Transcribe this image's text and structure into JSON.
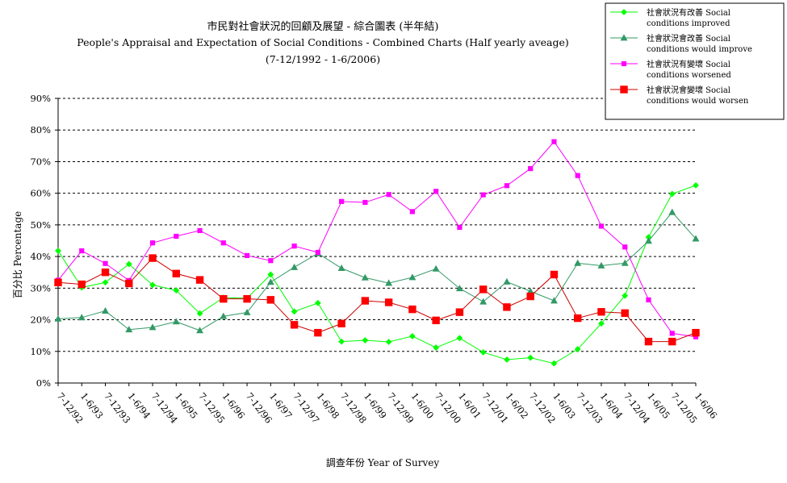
{
  "chart_data": {
    "type": "line",
    "title": "市民對社會狀況的回顧及展望 - 綜合圖表 (半年結)",
    "subtitle": "People's Appraisal and Expectation of Social Conditions - Combined Charts  (Half yearly aveage)",
    "subtitle2": "(7-12/1992 - 1-6/2006)",
    "xlabel": "調查年份 Year of Survey",
    "ylabel": "百分比 Percentage",
    "ylim": [
      0,
      90
    ],
    "yticks": [
      0,
      10,
      20,
      30,
      40,
      50,
      60,
      70,
      80,
      90
    ],
    "ytick_labels": [
      "0%",
      "10%",
      "20%",
      "30%",
      "40%",
      "50%",
      "60%",
      "70%",
      "80%",
      "90%"
    ],
    "grid": "horizontal dashed",
    "legend_position": "top-right",
    "categories": [
      "7-12/92",
      "1-6/93",
      "7-12/93",
      "1-6/94",
      "7-12/94",
      "1-6/95",
      "7-12/95",
      "1-6/96",
      "7-12/96",
      "1-6/97",
      "7-12/97",
      "1-6/98",
      "7-12/98",
      "1-6/99",
      "7-12/99",
      "1-6/00",
      "7-12/00",
      "1-6/01",
      "7-12/01",
      "1-6/02",
      "7-12/02",
      "1-6/03",
      "7-12/03",
      "1-6/04",
      "7-12/04",
      "1-6/05",
      "7-12/05",
      "1-6/06"
    ],
    "series": [
      {
        "name": "社會狀況有改善 Social conditions improved",
        "name_line1": "社會狀況有改善 Social",
        "name_line2": "conditions improved",
        "color": "#00ff00",
        "marker": "diamond",
        "values": [
          41.8,
          30.2,
          31.8,
          37.6,
          31.0,
          29.3,
          22.0,
          27.0,
          26.8,
          34.3,
          22.6,
          25.3,
          13.1,
          13.5,
          13.0,
          14.8,
          11.2,
          14.2,
          9.7,
          7.4,
          8.0,
          6.2,
          10.7,
          18.8,
          27.6,
          46.1,
          59.8,
          62.5
        ]
      },
      {
        "name": "社會狀況會改善 Social conditions would improve",
        "name_line1": "社會狀況會改善 Social",
        "name_line2": "conditions would improve",
        "color": "#339966",
        "marker": "triangle",
        "values": [
          20.3,
          20.7,
          22.8,
          16.9,
          17.6,
          19.4,
          16.6,
          21.1,
          22.3,
          31.9,
          36.6,
          41.0,
          36.3,
          33.3,
          31.6,
          33.4,
          36.1,
          29.9,
          25.7,
          32.0,
          29.0,
          26.0,
          37.9,
          37.1,
          37.9,
          44.9,
          54.0,
          45.6
        ]
      },
      {
        "name": "社會狀況有變壞 Social conditions worsened",
        "name_line1": "社會狀況有變壞 Social",
        "name_line2": "conditions worsened",
        "color": "#ff00ff",
        "marker": "square-small",
        "values": [
          32.5,
          41.8,
          37.8,
          32.4,
          44.3,
          46.4,
          48.2,
          44.3,
          40.3,
          38.7,
          43.3,
          41.3,
          57.4,
          57.1,
          59.6,
          54.2,
          60.6,
          49.2,
          59.5,
          62.4,
          67.8,
          76.3,
          65.6,
          49.6,
          43.0,
          26.3,
          15.7,
          14.6
        ]
      },
      {
        "name": "社會狀況會變壞 Social conditions would worsen",
        "name_line1": "社會狀況會變壞 Social",
        "name_line2": "conditions would worsen",
        "color": "#ff0000",
        "marker": "square-large",
        "line_color": "#cc0000",
        "values": [
          31.8,
          31.2,
          35.0,
          31.5,
          39.5,
          34.6,
          32.6,
          26.6,
          26.6,
          26.3,
          18.4,
          15.9,
          18.8,
          26.0,
          25.5,
          23.3,
          19.8,
          22.4,
          29.6,
          24.0,
          27.4,
          34.3,
          20.5,
          22.5,
          22.1,
          13.1,
          13.1,
          15.9
        ]
      }
    ]
  }
}
